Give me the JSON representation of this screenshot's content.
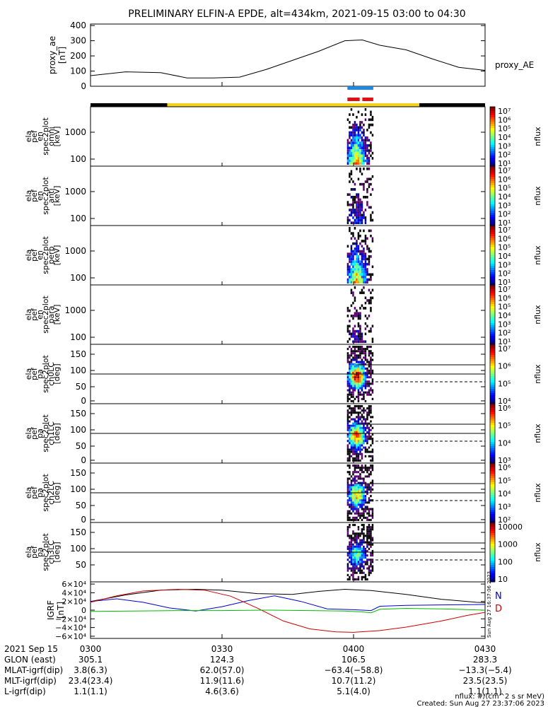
{
  "chart_data": {
    "type": "line",
    "title": "PRELIMINARY ELFIN-A EPDE, alt=434km, 2021-09-15 03:00 to 04:30",
    "ae_panel": {
      "ylabel": "proxy_ae",
      "yunit": "[nT]",
      "yticks": [
        "400",
        "300",
        "200",
        "100",
        "0"
      ],
      "ylim": [
        0,
        410
      ],
      "series_name": "proxy_AE",
      "series": [
        {
          "t": 0,
          "v": 70
        },
        {
          "t": 8,
          "v": 95
        },
        {
          "t": 16,
          "v": 90
        },
        {
          "t": 22,
          "v": 55
        },
        {
          "t": 28,
          "v": 55
        },
        {
          "t": 34,
          "v": 60
        },
        {
          "t": 40,
          "v": 110
        },
        {
          "t": 46,
          "v": 170
        },
        {
          "t": 52,
          "v": 230
        },
        {
          "t": 58,
          "v": 300
        },
        {
          "t": 62,
          "v": 305
        },
        {
          "t": 66,
          "v": 270
        },
        {
          "t": 72,
          "v": 240
        },
        {
          "t": 78,
          "v": 180
        },
        {
          "t": 84,
          "v": 125
        },
        {
          "t": 90,
          "v": 105
        }
      ]
    },
    "spec_panels": [
      {
        "label": [
          "ela",
          "pef",
          "en",
          "spec2plot",
          "omni",
          "[keV]"
        ],
        "yticks": [
          "1000",
          "100"
        ],
        "cbar_ticks": [
          "10⁷",
          "10⁶",
          "10⁵",
          "10⁴",
          "10³",
          "10²",
          "10¹"
        ],
        "cbar_label": "nflux",
        "kind": "energy",
        "intensity": 1.0
      },
      {
        "label": [
          "ela",
          "pef",
          "en",
          "spec2plot",
          "anti",
          "[keV]"
        ],
        "yticks": [
          "1000",
          "100"
        ],
        "cbar_ticks": [
          "10⁷",
          "10⁶",
          "10⁵",
          "10⁴",
          "10³",
          "10²",
          "10¹"
        ],
        "cbar_label": "nflux",
        "kind": "energy",
        "intensity": 0.35
      },
      {
        "label": [
          "ela",
          "pef",
          "en",
          "spec2plot",
          "perp",
          "[keV]"
        ],
        "yticks": [
          "1000",
          "100"
        ],
        "cbar_ticks": [
          "10⁷",
          "10⁶",
          "10⁵",
          "10⁴",
          "10³",
          "10²",
          "10¹"
        ],
        "cbar_label": "nflux",
        "kind": "energy",
        "intensity": 0.95
      },
      {
        "label": [
          "ela",
          "pef",
          "en",
          "spec2plot",
          "para",
          "[keV]"
        ],
        "yticks": [
          "1000",
          "100"
        ],
        "cbar_ticks": [
          "10⁷",
          "10⁶",
          "10⁵",
          "10⁴",
          "10³",
          "10²",
          "10¹"
        ],
        "cbar_label": "nflux",
        "kind": "energy",
        "intensity": 0.25
      },
      {
        "label": [
          "ela",
          "pef",
          "pa",
          "spec2plot",
          "ch0LC",
          "[deg]"
        ],
        "yticks": [
          "150",
          "100",
          "50",
          "0"
        ],
        "cbar_ticks": [
          "10⁷",
          "10⁶",
          "10⁵",
          "10⁴"
        ],
        "cbar_label": "nflux",
        "kind": "pa",
        "intensity": 1.0
      },
      {
        "label": [
          "ela",
          "pef",
          "pa",
          "spec2plot",
          "ch1LC",
          "[deg]"
        ],
        "yticks": [
          "150",
          "100",
          "50",
          "0"
        ],
        "cbar_ticks": [
          "10⁶",
          "10⁵",
          "10⁴",
          "10³"
        ],
        "cbar_label": "nflux",
        "kind": "pa",
        "intensity": 0.9
      },
      {
        "label": [
          "ela",
          "pef",
          "pa",
          "spec2plot",
          "ch2LC",
          "[deg]"
        ],
        "yticks": [
          "150",
          "100",
          "50",
          "0"
        ],
        "cbar_ticks": [
          "10⁶",
          "10⁵",
          "10⁴",
          "10³",
          "10²"
        ],
        "cbar_label": "nflux",
        "kind": "pa",
        "intensity": 0.8
      },
      {
        "label": [
          "ela",
          "pef",
          "pa",
          "spec2plot",
          "ch3LC",
          "[deg]"
        ],
        "yticks": [
          "150",
          "100",
          "50"
        ],
        "cbar_ticks": [
          "10000",
          "1000",
          "100",
          "10"
        ],
        "cbar_label": "nflux",
        "kind": "pa",
        "intensity": 0.6
      }
    ],
    "igrf_panel": {
      "ylabel": "IGRF",
      "yunit": "[nT]",
      "yticks": [
        "6×10⁴",
        "4×10⁴",
        "2×10⁴",
        "0",
        "−2×10⁴",
        "−4×10⁴",
        "−6×10⁴"
      ],
      "ylim": [
        -65000,
        65000
      ],
      "legend": [
        "N",
        "D"
      ],
      "side_note": "Sun Aug 27 16:37:06 2023",
      "series": [
        {
          "color": "#000000",
          "points": [
            [
              0,
              20000
            ],
            [
              8,
              35000
            ],
            [
              16,
              46000
            ],
            [
              24,
              48000
            ],
            [
              30,
              46000
            ],
            [
              38,
              38000
            ],
            [
              46,
              36000
            ],
            [
              52,
              43000
            ],
            [
              58,
              48000
            ],
            [
              64,
              45000
            ],
            [
              72,
              36000
            ],
            [
              80,
              25000
            ],
            [
              88,
              18000
            ],
            [
              90,
              17000
            ]
          ]
        },
        {
          "color": "#0000cc",
          "points": [
            [
              0,
              20000
            ],
            [
              6,
              26000
            ],
            [
              12,
              18000
            ],
            [
              18,
              5000
            ],
            [
              24,
              -2000
            ],
            [
              30,
              8000
            ],
            [
              36,
              22000
            ],
            [
              42,
              33000
            ],
            [
              48,
              20000
            ],
            [
              54,
              3000
            ],
            [
              60,
              1000
            ],
            [
              62,
              0
            ],
            [
              64,
              -1000
            ],
            [
              66,
              9000
            ],
            [
              72,
              11000
            ],
            [
              80,
              12000
            ],
            [
              90,
              13000
            ]
          ]
        },
        {
          "color": "#cc0000",
          "points": [
            [
              0,
              18000
            ],
            [
              6,
              33000
            ],
            [
              12,
              44000
            ],
            [
              20,
              48000
            ],
            [
              26,
              46000
            ],
            [
              32,
              32000
            ],
            [
              38,
              5000
            ],
            [
              44,
              -25000
            ],
            [
              50,
              -43000
            ],
            [
              56,
              -50000
            ],
            [
              60,
              -51000
            ],
            [
              66,
              -47000
            ],
            [
              72,
              -39000
            ],
            [
              80,
              -25000
            ],
            [
              86,
              -12000
            ],
            [
              90,
              -5000
            ]
          ]
        },
        {
          "color": "#00bb00",
          "points": [
            [
              0,
              -3000
            ],
            [
              10,
              -2000
            ],
            [
              20,
              -1000
            ],
            [
              30,
              -1000
            ],
            [
              40,
              0
            ],
            [
              50,
              -1000
            ],
            [
              58,
              -2000
            ],
            [
              62,
              -4000
            ],
            [
              64,
              -6000
            ],
            [
              66,
              2000
            ],
            [
              72,
              4000
            ],
            [
              80,
              3000
            ],
            [
              90,
              0
            ]
          ]
        }
      ]
    },
    "time_axis": {
      "ticks": [
        {
          "t": 0,
          "label": "0300"
        },
        {
          "t": 30,
          "label": "0330"
        },
        {
          "t": 60,
          "label": "0400"
        },
        {
          "t": 90,
          "label": "0430"
        }
      ]
    },
    "footer": {
      "rows": [
        {
          "label": "2021 Sep 15",
          "values": [
            "0300",
            "0330",
            "0400",
            "0430"
          ]
        },
        {
          "label": "GLON (east)",
          "values": [
            "305.1",
            "124.3",
            "106.5",
            "283.3"
          ]
        },
        {
          "label": "MLAT-igrf(dip)",
          "values": [
            "3.8(6.3)",
            "62.0(57.0)",
            "−63.4(−58.8)",
            "−13.3(−5.4)"
          ]
        },
        {
          "label": "MLT-igrf(dip)",
          "values": [
            "23.4(23.4)",
            "11.9(11.6)",
            "10.7(11.2)",
            "23.5(23.5)"
          ]
        },
        {
          "label": "L-igrf(dip)",
          "values": [
            "1.1(1.1)",
            "4.6(3.6)",
            "5.1(4.0)",
            "1.1(1.1)"
          ]
        }
      ],
      "note1": "nflux: #/(cm^2 s sr MeV)",
      "note2": "Created: Sun Aug 27 23:37:06 2023"
    }
  }
}
